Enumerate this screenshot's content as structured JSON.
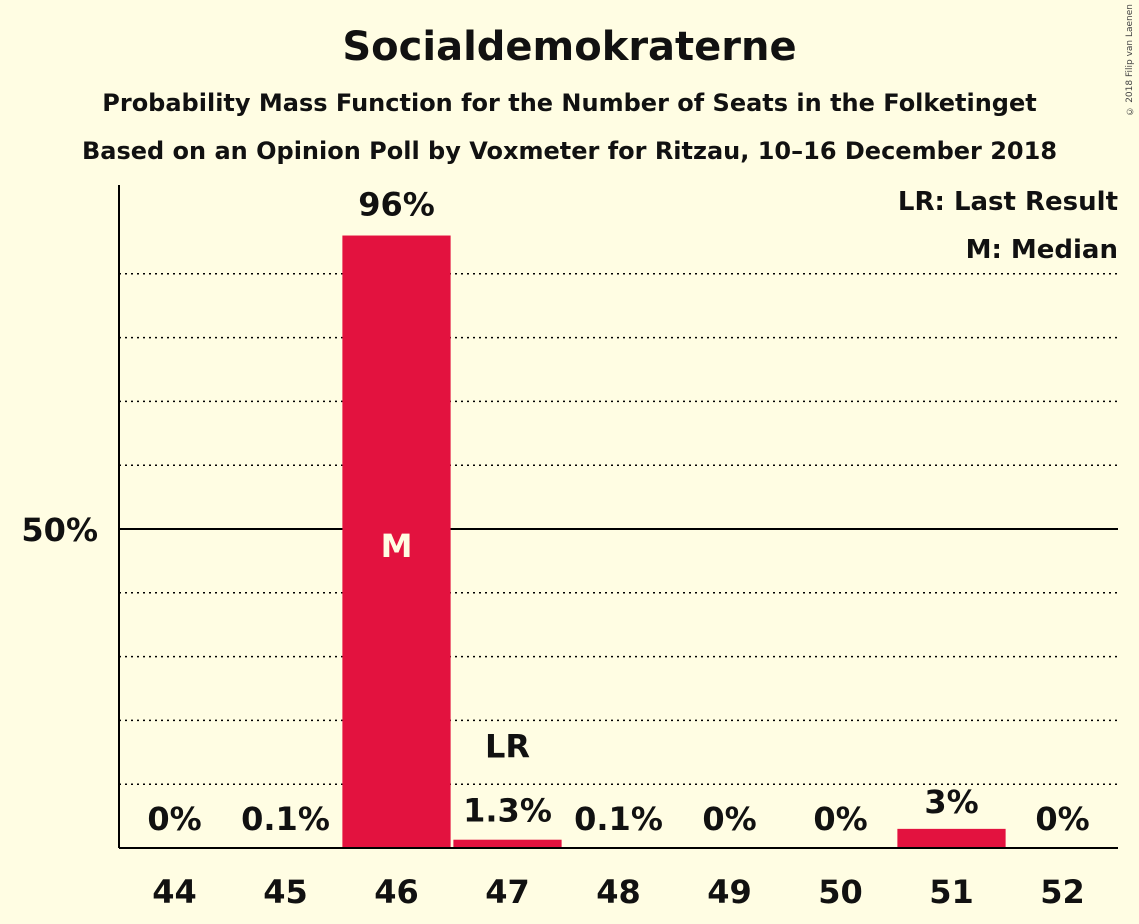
{
  "header": {
    "title": "Socialdemokraterne",
    "subtitle": "Probability Mass Function for the Number of Seats in the Folketinget",
    "subtitle2": "Based on an Opinion Poll by Voxmeter for Ritzau, 10–16 December 2018",
    "copyright": "© 2018 Filip van Laenen"
  },
  "legend": {
    "last_result": "LR: Last Result",
    "median": "M: Median"
  },
  "colors": {
    "bar": "#E3123F",
    "background": "#FFFDE3"
  },
  "chart_data": {
    "type": "bar",
    "title": "Socialdemokraterne",
    "categories": [
      "44",
      "45",
      "46",
      "47",
      "48",
      "49",
      "50",
      "51",
      "52"
    ],
    "values": [
      0,
      0.1,
      96,
      1.3,
      0.1,
      0,
      0,
      3,
      0
    ],
    "value_labels": [
      "0%",
      "0.1%",
      "96%",
      "1.3%",
      "0.1%",
      "0%",
      "0%",
      "3%",
      "0%"
    ],
    "ylim": [
      0,
      100
    ],
    "y_tick_label": "50%",
    "y_tick_value": 50,
    "grid_step": 10,
    "median_category": "46",
    "median_label": "M",
    "last_result_category": "47",
    "last_result_label": "LR",
    "grid": true,
    "legend_position": "top-right"
  }
}
